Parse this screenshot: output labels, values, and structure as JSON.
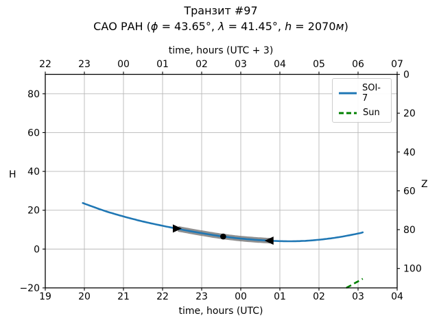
{
  "chart_data": {
    "type": "line",
    "title": "Транзит #97",
    "subtitle_parts": [
      {
        "text": "САО РАН (",
        "italic": false
      },
      {
        "text": "ϕ",
        "italic": true
      },
      {
        "text": " = 43.65°, ",
        "italic": false
      },
      {
        "text": "λ",
        "italic": true
      },
      {
        "text": " = 41.45°, ",
        "italic": false
      },
      {
        "text": "h",
        "italic": true
      },
      {
        "text": " = 2070",
        "italic": false
      },
      {
        "text": "м",
        "italic": true
      },
      {
        "text": ")",
        "italic": false
      }
    ],
    "axes": {
      "top": {
        "label": "time, hours (UTC + 3)",
        "ticks": [
          "22",
          "23",
          "00",
          "01",
          "02",
          "03",
          "04",
          "05",
          "06",
          "07"
        ]
      },
      "bottom": {
        "label": "time, hours (UTC)",
        "ticks": [
          "19",
          "20",
          "21",
          "22",
          "23",
          "00",
          "01",
          "02",
          "03",
          "04"
        ]
      },
      "left": {
        "label": "H",
        "ticks": [
          {
            "label": "80",
            "value": 80
          },
          {
            "label": "60",
            "value": 60
          },
          {
            "label": "40",
            "value": 40
          },
          {
            "label": "20",
            "value": 20
          },
          {
            "label": "0",
            "value": 0
          },
          {
            "label": "−20",
            "value": -20
          }
        ]
      },
      "right": {
        "label": "Z",
        "ticks": [
          {
            "label": "0",
            "z": 0
          },
          {
            "label": "20",
            "z": 20
          },
          {
            "label": "40",
            "z": 40
          },
          {
            "label": "60",
            "z": 60
          },
          {
            "label": "80",
            "z": 80
          },
          {
            "label": "100",
            "z": 100
          }
        ]
      }
    },
    "xlim_hours_utc": [
      19,
      28
    ],
    "ylim": [
      -20,
      90
    ],
    "grid": true,
    "grid_color": "#b8b8b8",
    "legend": {
      "location": "upper right",
      "entries": [
        {
          "label": "SOI-7",
          "color": "#1f77b4",
          "style": "solid"
        },
        {
          "label": "Sun",
          "color": "#008000",
          "style": "dashed"
        }
      ]
    },
    "series": [
      {
        "name": "SOI-7",
        "color": "#1f77b4",
        "style": "solid",
        "note": "x = hours UTC, values over 24 are past midnight; y = altitude H, degrees",
        "points": [
          [
            19.96,
            23.7
          ],
          [
            20.5,
            19.8
          ],
          [
            21.0,
            16.8
          ],
          [
            21.5,
            14.2
          ],
          [
            22.0,
            12.0
          ],
          [
            22.5,
            10.0
          ],
          [
            23.0,
            8.2
          ],
          [
            23.5,
            6.6
          ],
          [
            24.0,
            5.4
          ],
          [
            24.5,
            4.6
          ],
          [
            25.0,
            4.1
          ],
          [
            25.5,
            4.1
          ],
          [
            26.0,
            4.8
          ],
          [
            26.5,
            6.1
          ],
          [
            27.0,
            8.0
          ],
          [
            27.12,
            8.6
          ]
        ]
      },
      {
        "name": "Sun",
        "color": "#008000",
        "style": "dashed",
        "points": [
          [
            26.7,
            -20.0
          ],
          [
            27.12,
            -15.3
          ]
        ]
      }
    ],
    "transit_overlay": {
      "band_color": "#787878",
      "marker_color": "#000000",
      "start_hour_utc": 22.35,
      "end_hour_utc": 24.76,
      "culmination_hour_utc": 23.57,
      "start_marker": "right-triangle",
      "end_marker": "left-triangle",
      "culmination_marker": "dot"
    }
  }
}
